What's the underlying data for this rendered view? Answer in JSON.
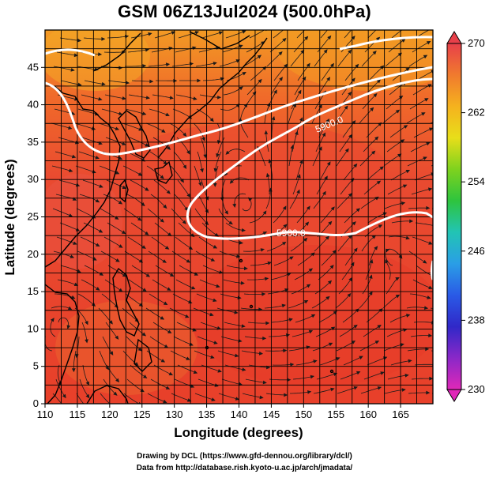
{
  "title": "GSM 06Z13Jul2024 (500.0hPa)",
  "xlabel": "Longitude (degrees)",
  "ylabel": "Latitude  (degrees)",
  "x_ticks": [
    "110",
    "115",
    "120",
    "125",
    "130",
    "135",
    "140",
    "145",
    "150",
    "155",
    "160",
    "165"
  ],
  "y_ticks": [
    "0",
    "5",
    "10",
    "15",
    "20",
    "25",
    "30",
    "35",
    "40",
    "45"
  ],
  "colorbar": {
    "ticks": [
      "270",
      "262",
      "254",
      "246",
      "238",
      "230"
    ],
    "colors": [
      "#e8404a",
      "#f07a2e",
      "#f5b21e",
      "#e8de1a",
      "#7ed21e",
      "#2ec43e",
      "#22c4b4",
      "#2a9ee6",
      "#2a5ae6",
      "#3028c8",
      "#8a28c8",
      "#e028b8"
    ]
  },
  "contours": [
    {
      "label": "5900.0"
    },
    {
      "label": "5900.0"
    }
  ],
  "credits": [
    "Drawing by DCL (https://www.gfd-dennou.org/library/dcl/)",
    "Data from http://database.rish.kyoto-u.ac.jp/arch/jmadata/"
  ],
  "chart_data": {
    "type": "heatmap",
    "title": "GSM 06Z13Jul2024 (500.0hPa)",
    "xlabel": "Longitude (degrees)",
    "ylabel": "Latitude  (degrees)",
    "xlim": [
      110,
      170
    ],
    "ylim": [
      0,
      50
    ],
    "x_ticks": [
      110,
      115,
      120,
      125,
      130,
      135,
      140,
      145,
      150,
      155,
      160,
      165
    ],
    "y_ticks": [
      0,
      5,
      10,
      15,
      20,
      25,
      30,
      35,
      40,
      45
    ],
    "colorbar_range": [
      230,
      270
    ],
    "colorbar_ticks": [
      270,
      262,
      254,
      246,
      238,
      230
    ],
    "contour_labels": [
      "5900.0",
      "5900.0"
    ],
    "grid": true
  }
}
